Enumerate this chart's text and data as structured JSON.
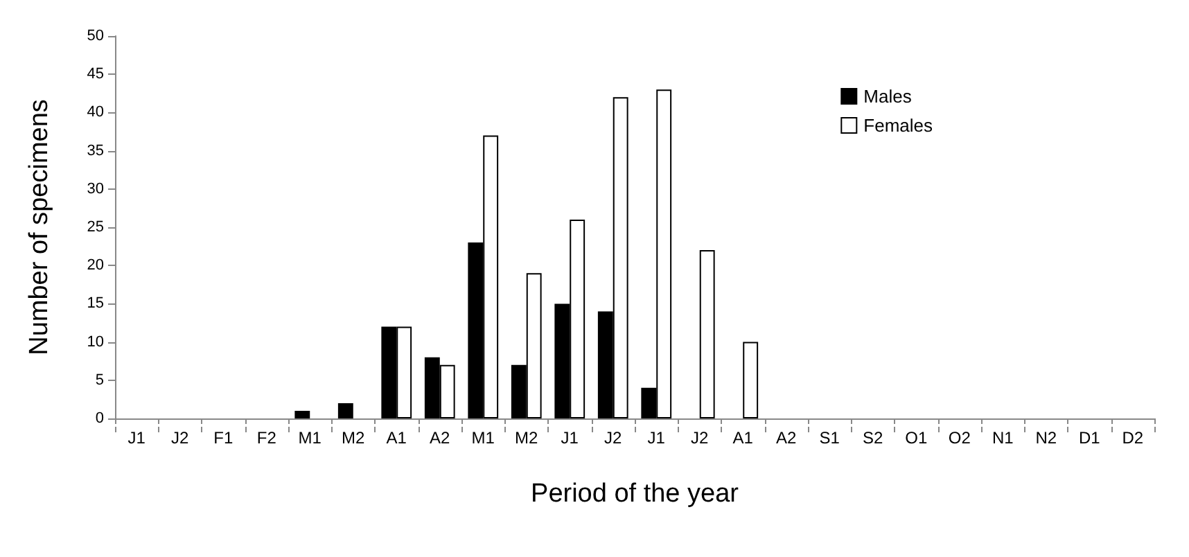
{
  "chart_data": {
    "type": "bar",
    "xlabel": "Period of the year",
    "ylabel": "Number of specimens",
    "categories": [
      "J1",
      "J2",
      "F1",
      "F2",
      "M1",
      "M2",
      "A1",
      "A2",
      "M1",
      "M2",
      "J1",
      "J2",
      "J1",
      "J2",
      "A1",
      "A2",
      "S1",
      "S2",
      "O1",
      "O2",
      "N1",
      "N2",
      "D1",
      "D2"
    ],
    "series": [
      {
        "name": "Males",
        "color": "#000000",
        "values": [
          0,
          0,
          0,
          0,
          1,
          2,
          12,
          8,
          23,
          7,
          15,
          14,
          4,
          0,
          0,
          0,
          0,
          0,
          0,
          0,
          0,
          0,
          0,
          0
        ]
      },
      {
        "name": "Females",
        "color": "#ffffff",
        "values": [
          0,
          0,
          0,
          0,
          0,
          0,
          12,
          7,
          37,
          19,
          26,
          42,
          43,
          22,
          10,
          0,
          0,
          0,
          0,
          0,
          0,
          0,
          0,
          0
        ]
      }
    ],
    "ylim": [
      0,
      50
    ],
    "yticks": [
      0,
      5,
      10,
      15,
      20,
      25,
      30,
      35,
      40,
      45,
      50
    ],
    "grid": false,
    "legend": "top right"
  }
}
